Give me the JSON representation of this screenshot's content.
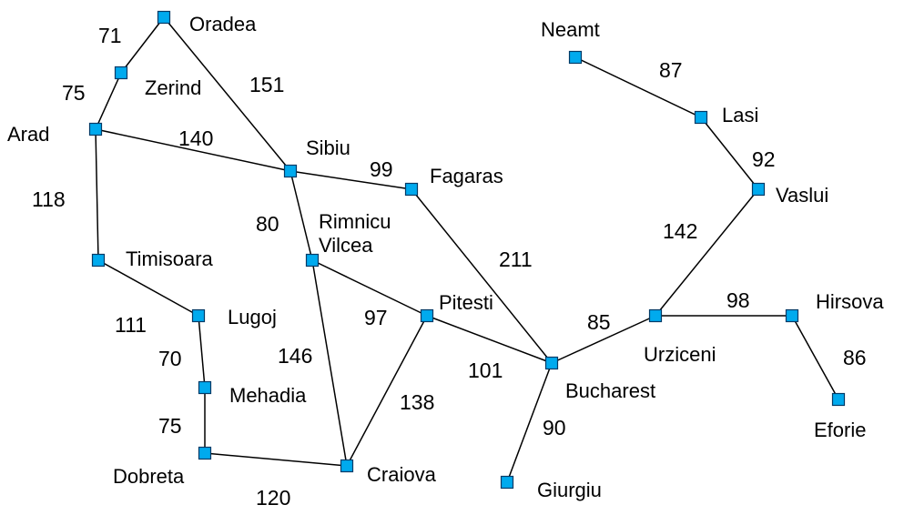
{
  "colors": {
    "node_fill": "#00aaee",
    "node_stroke": "#003a66",
    "road": "#000000",
    "text": "#000000"
  },
  "cities": [
    {
      "id": "oradea",
      "label": "Oradea"
    },
    {
      "id": "zerind",
      "label": "Zerind"
    },
    {
      "id": "arad",
      "label": "Arad"
    },
    {
      "id": "sibiu",
      "label": "Sibiu"
    },
    {
      "id": "fagaras",
      "label": "Fagaras"
    },
    {
      "id": "rimnicu",
      "label": "Rimnicu\nVilcea"
    },
    {
      "id": "timisoara",
      "label": "Timisoara"
    },
    {
      "id": "lugoj",
      "label": "Lugoj"
    },
    {
      "id": "mehadia",
      "label": "Mehadia"
    },
    {
      "id": "dobreta",
      "label": "Dobreta"
    },
    {
      "id": "craiova",
      "label": "Craiova"
    },
    {
      "id": "pitesti",
      "label": "Pitesti"
    },
    {
      "id": "bucharest",
      "label": "Bucharest"
    },
    {
      "id": "giurgiu",
      "label": "Giurgiu"
    },
    {
      "id": "urziceni",
      "label": "Urziceni"
    },
    {
      "id": "hirsova",
      "label": "Hirsova"
    },
    {
      "id": "eforie",
      "label": "Eforie"
    },
    {
      "id": "vaslui",
      "label": "Vaslui"
    },
    {
      "id": "lasi",
      "label": "Lasi"
    },
    {
      "id": "neamt",
      "label": "Neamt"
    }
  ],
  "roads": [
    {
      "from": "oradea",
      "to": "zerind",
      "distance": "71"
    },
    {
      "from": "zerind",
      "to": "arad",
      "distance": "75"
    },
    {
      "from": "oradea",
      "to": "sibiu",
      "distance": "151"
    },
    {
      "from": "arad",
      "to": "sibiu",
      "distance": "140"
    },
    {
      "from": "arad",
      "to": "timisoara",
      "distance": "118"
    },
    {
      "from": "sibiu",
      "to": "fagaras",
      "distance": "99"
    },
    {
      "from": "sibiu",
      "to": "rimnicu",
      "distance": "80"
    },
    {
      "from": "fagaras",
      "to": "bucharest",
      "distance": "211"
    },
    {
      "from": "rimnicu",
      "to": "pitesti",
      "distance": "97"
    },
    {
      "from": "rimnicu",
      "to": "craiova",
      "distance": "146"
    },
    {
      "from": "timisoara",
      "to": "lugoj",
      "distance": "111"
    },
    {
      "from": "lugoj",
      "to": "mehadia",
      "distance": "70"
    },
    {
      "from": "mehadia",
      "to": "dobreta",
      "distance": "75"
    },
    {
      "from": "dobreta",
      "to": "craiova",
      "distance": "120"
    },
    {
      "from": "craiova",
      "to": "pitesti",
      "distance": "138"
    },
    {
      "from": "pitesti",
      "to": "bucharest",
      "distance": "101"
    },
    {
      "from": "bucharest",
      "to": "giurgiu",
      "distance": "90"
    },
    {
      "from": "bucharest",
      "to": "urziceni",
      "distance": "85"
    },
    {
      "from": "urziceni",
      "to": "hirsova",
      "distance": "98"
    },
    {
      "from": "hirsova",
      "to": "eforie",
      "distance": "86"
    },
    {
      "from": "urziceni",
      "to": "vaslui",
      "distance": "142"
    },
    {
      "from": "vaslui",
      "to": "lasi",
      "distance": "92"
    },
    {
      "from": "lasi",
      "to": "neamt",
      "distance": "87"
    }
  ]
}
